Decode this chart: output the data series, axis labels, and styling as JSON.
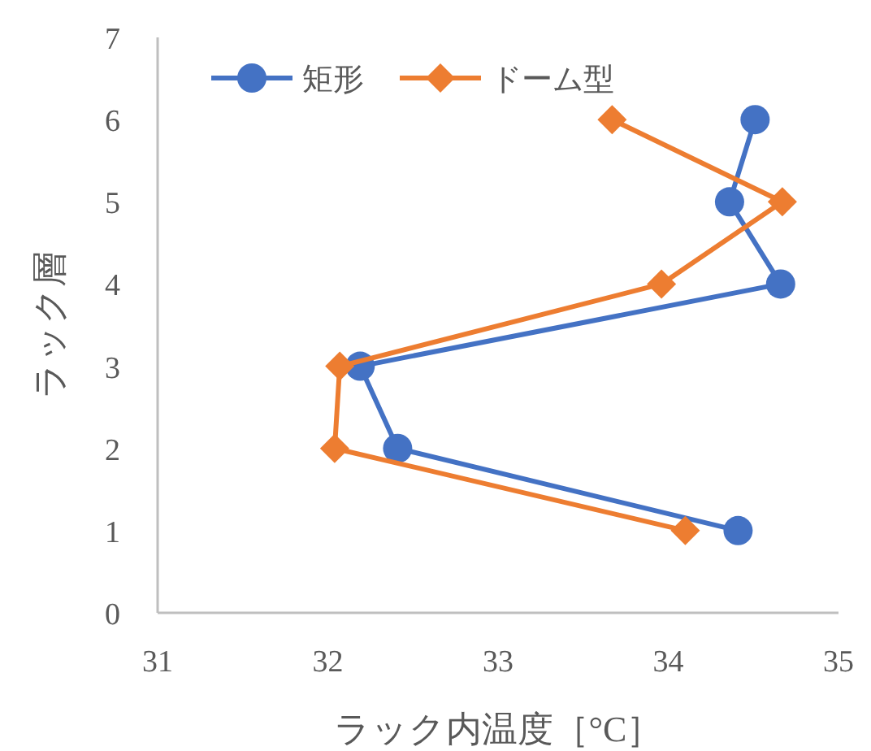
{
  "chart_data": {
    "type": "line",
    "xlabel": "ラック内温度［°C］",
    "ylabel": "ラック層",
    "xlim": [
      31,
      35
    ],
    "xticks": [
      31,
      32,
      33,
      34,
      35
    ],
    "ylim": [
      0,
      7
    ],
    "yticks": [
      0,
      1,
      2,
      3,
      4,
      5,
      6,
      7
    ],
    "grid": false,
    "legend": "top left",
    "series": [
      {
        "name": "矩形",
        "color": "#4472c4",
        "marker": "circle",
        "x": [
          34.41,
          32.41,
          32.19,
          34.66,
          34.36,
          34.51
        ],
        "values": [
          1,
          2,
          3,
          4,
          5,
          6
        ]
      },
      {
        "name": "ドーム型",
        "color": "#ed7d31",
        "marker": "diamond",
        "x": [
          34.1,
          32.04,
          32.07,
          33.96,
          34.67,
          33.67
        ],
        "values": [
          1,
          2,
          3,
          4,
          5,
          6
        ]
      }
    ]
  }
}
